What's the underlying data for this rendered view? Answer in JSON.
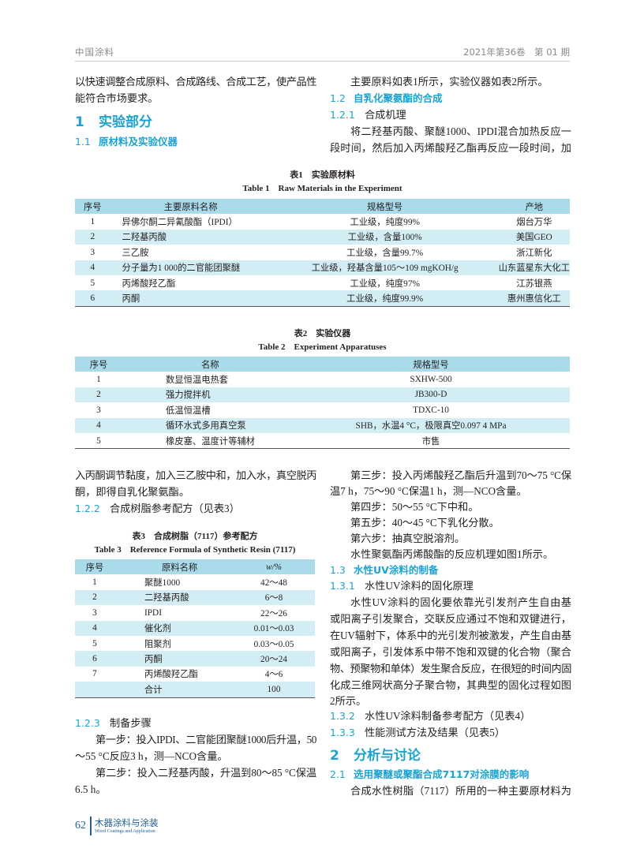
{
  "header": {
    "journal": "中国涂料",
    "issue": "2021年第36卷　第 01 期"
  },
  "left_top": {
    "lines": [
      "以快速调整合成原料、合成路线、合成工艺，使产品性",
      "能符合市场要求。"
    ],
    "h1": {
      "num": "1",
      "text": "实验部分"
    },
    "h2": {
      "num": "1.1",
      "text": "原材料及实验仪器"
    }
  },
  "right_top": {
    "line1": "主要原料如表1所示，实验仪器如表2所示。",
    "h2": {
      "num": "1.2",
      "text": "自乳化聚氨酯的合成"
    },
    "h3": {
      "num": "1.2.1",
      "text": "合成机理"
    },
    "para": [
      "将二羟基丙酸、聚醚1000、IPDI混合加热反应一",
      "段时间，然后加入丙烯酸羟乙酯再反应一段时间，加"
    ]
  },
  "table1": {
    "title_cn": "表1　实验原材料",
    "title_en": "Table 1　Raw Materials in the Experiment",
    "headers": [
      "序号",
      "主要原料名称",
      "规格型号",
      "产地"
    ],
    "rows": [
      [
        "1",
        "异佛尔酮二异氰酸酯（IPDI）",
        "工业级，纯度99%",
        "烟台万华"
      ],
      [
        "2",
        "二羟基丙酸",
        "工业级，含量100%",
        "美国GEO"
      ],
      [
        "3",
        "三乙胺",
        "工业级，含量99.7%",
        "浙江新化"
      ],
      [
        "4",
        "分子量为1 000的二官能团聚醚",
        "工业级，羟基含量105～109 mgKOH/g",
        "山东蓝星东大化工"
      ],
      [
        "5",
        "丙烯酸羟乙酯",
        "工业级，纯度97%",
        "江苏银燕"
      ],
      [
        "6",
        "丙酮",
        "工业级，纯度99.9%",
        "惠州惠信化工"
      ]
    ]
  },
  "table2": {
    "title_cn": "表2　实验仪器",
    "title_en": "Table 2　Experiment Apparatuses",
    "headers": [
      "序号",
      "名称",
      "规格型号"
    ],
    "rows": [
      [
        "1",
        "数显恒温电热套",
        "SXHW-500"
      ],
      [
        "2",
        "强力搅拌机",
        "JB300-D"
      ],
      [
        "3",
        "低温恒温槽",
        "TDXC-10"
      ],
      [
        "4",
        "循环水式多用真空泵",
        "SHB，水温4 °C，极限真空0.097 4 MPa"
      ],
      [
        "5",
        "橡皮塞、温度计等辅材",
        "市售"
      ]
    ]
  },
  "left_bottom": {
    "para": [
      "入丙酮调节黏度，加入三乙胺中和，加入水，真空脱丙",
      "酮，即得自乳化聚氨酯。"
    ],
    "h3a": {
      "num": "1.2.2",
      "text": "合成树脂参考配方（见表3）"
    },
    "h3b": {
      "num": "1.2.3",
      "text": "制备步骤"
    },
    "step1": [
      "第一步：投入IPDI、二官能团聚醚1000后升温，50",
      "～55 °C反应3 h，测—NCO含量。"
    ],
    "step2": [
      "第二步：投入二羟基丙酸，升温到80～85 °C保温",
      "6.5 h。"
    ]
  },
  "table3": {
    "title_cn": "表3　合成树脂（7117）参考配方",
    "title_en": "Table 3　Reference Formula of Synthetic Resin (7117)",
    "headers": [
      "序号",
      "原料名称",
      "w/%"
    ],
    "rows": [
      [
        "1",
        "聚醚1000",
        "42～48"
      ],
      [
        "2",
        "二羟基丙酸",
        "6～8"
      ],
      [
        "3",
        "IPDI",
        "22～26"
      ],
      [
        "4",
        "催化剂",
        "0.01～0.03"
      ],
      [
        "5",
        "阻聚剂",
        "0.03～0.05"
      ],
      [
        "6",
        "丙酮",
        "20～24"
      ],
      [
        "7",
        "丙烯酸羟乙酯",
        "4～6"
      ],
      [
        "",
        "合计",
        "100"
      ]
    ]
  },
  "right_bottom": {
    "step3": [
      "第三步：投入丙烯酸羟乙酯后升温到70～75 °C保",
      "温7 h，75～90 °C保温1 h，测—NCO含量。"
    ],
    "step4": "第四步：50～55 °C下中和。",
    "step5": "第五步：40～45 °C下乳化分散。",
    "step6": "第六步：抽真空脱溶剂。",
    "mech": "水性聚氨酯丙烯酸酯的反应机理如图1所示。",
    "h2a": {
      "num": "1.3",
      "text": "水性UV涂料的制备"
    },
    "h3a": {
      "num": "1.3.1",
      "text": "水性UV涂料的固化原理"
    },
    "para": [
      "水性UV涂料的固化要依靠光引发剂产生自由基",
      "或阳离子引发聚合，交联反应通过不饱和双键进行，",
      "在UV辐射下，体系中的光引发剂被激发，产生自由基",
      "或阳离子，引发体系中带不饱和双键的化合物（聚合",
      "物、预聚物和单体）发生聚合反应，在很短的时间内固",
      "化成三维网状高分子聚合物，其典型的固化过程如图",
      "2所示。"
    ],
    "h3b": {
      "num": "1.3.2",
      "text": "水性UV涂料制备参考配方（见表4）"
    },
    "h3c": {
      "num": "1.3.3",
      "text": "性能测试方法及结果（见表5）"
    },
    "h1": {
      "num": "2",
      "text": "分析与讨论"
    },
    "h2b": {
      "num": "2.1",
      "text": "选用聚醚或聚酯合成7117对涂膜的影响"
    },
    "last": "合成水性树脂（7117）所用的一种主要原材料为"
  },
  "footer": {
    "page": "62",
    "journal_cn": "木器涂料与涂装",
    "journal_en": "Wood Coatings and Application"
  },
  "colors": {
    "accent": "#1aa3d4",
    "table_header": "#a9dbea",
    "table_stripe": "#d3edf5",
    "footer": "#1f5f96"
  }
}
